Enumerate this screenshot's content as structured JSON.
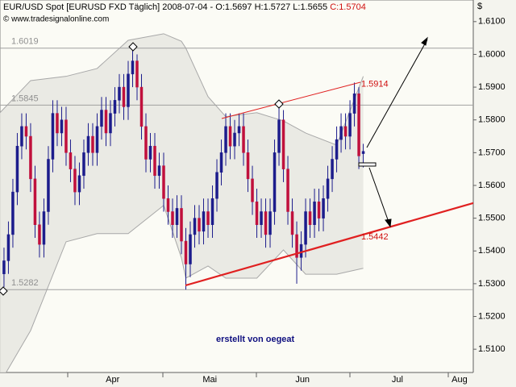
{
  "chart_data": {
    "type": "candlestick",
    "title": "EUR/USD Spot [EURUSD FXD  Täglich] 2008-07-04 - O:1.5697 H:1.5727 L:1.5655",
    "title_close": "C:1.5704",
    "source": "© www.tradesignalonline.com",
    "currency": "$",
    "annotation": "erstellt von oegeat",
    "up_color": "#1c1c8c",
    "down_color": "#c0103c",
    "band_color": "#a8a8a8",
    "open": [
      1.533,
      1.537,
      1.545,
      1.558,
      1.572,
      1.578,
      1.575,
      1.562,
      1.548,
      1.542,
      1.552,
      1.568,
      1.582,
      1.576,
      1.58,
      1.57,
      1.565,
      1.558,
      1.563,
      1.57,
      1.575,
      1.57,
      1.578,
      1.583,
      1.576,
      1.582,
      1.586,
      1.59,
      1.584,
      1.594,
      1.598,
      1.59,
      1.578,
      1.568,
      1.572,
      1.563,
      1.566,
      1.556,
      1.552,
      1.548,
      1.553,
      1.543,
      1.536,
      1.545,
      1.55,
      1.546,
      1.552,
      1.548,
      1.556,
      1.564,
      1.57,
      1.578,
      1.572,
      1.576,
      1.578,
      1.57,
      1.562,
      1.555,
      1.548,
      1.552,
      1.545,
      1.552,
      1.57,
      1.58,
      1.565,
      1.552,
      1.545,
      1.538,
      1.542,
      1.552,
      1.548,
      1.555,
      1.55,
      1.556,
      1.562,
      1.568,
      1.574,
      1.578,
      1.575,
      1.582,
      1.588,
      1.5697
    ],
    "high": [
      1.541,
      1.549,
      1.562,
      1.576,
      1.582,
      1.582,
      1.579,
      1.566,
      1.552,
      1.556,
      1.572,
      1.586,
      1.586,
      1.584,
      1.584,
      1.574,
      1.569,
      1.567,
      1.574,
      1.579,
      1.579,
      1.582,
      1.587,
      1.587,
      1.586,
      1.59,
      1.594,
      1.594,
      1.598,
      1.6019,
      1.6,
      1.594,
      1.582,
      1.576,
      1.576,
      1.57,
      1.57,
      1.56,
      1.556,
      1.557,
      1.557,
      1.547,
      1.549,
      1.554,
      1.554,
      1.556,
      1.556,
      1.56,
      1.568,
      1.574,
      1.582,
      1.582,
      1.58,
      1.582,
      1.582,
      1.574,
      1.566,
      1.559,
      1.556,
      1.556,
      1.556,
      1.574,
      1.5845,
      1.583,
      1.569,
      1.556,
      1.549,
      1.546,
      1.556,
      1.556,
      1.559,
      1.559,
      1.56,
      1.566,
      1.572,
      1.578,
      1.582,
      1.582,
      1.586,
      1.5914,
      1.59,
      1.5727
    ],
    "low": [
      1.529,
      1.533,
      1.541,
      1.554,
      1.568,
      1.571,
      1.558,
      1.544,
      1.538,
      1.538,
      1.548,
      1.564,
      1.572,
      1.572,
      1.566,
      1.561,
      1.554,
      1.554,
      1.559,
      1.566,
      1.566,
      1.566,
      1.574,
      1.572,
      1.572,
      1.578,
      1.582,
      1.58,
      1.58,
      1.59,
      1.586,
      1.574,
      1.564,
      1.564,
      1.559,
      1.559,
      1.552,
      1.548,
      1.544,
      1.544,
      1.539,
      1.5282,
      1.532,
      1.541,
      1.542,
      1.542,
      1.544,
      1.544,
      1.552,
      1.56,
      1.566,
      1.568,
      1.568,
      1.572,
      1.566,
      1.558,
      1.551,
      1.544,
      1.544,
      1.541,
      1.541,
      1.548,
      1.566,
      1.561,
      1.548,
      1.541,
      1.53,
      1.534,
      1.538,
      1.544,
      1.544,
      1.546,
      1.546,
      1.552,
      1.558,
      1.564,
      1.57,
      1.571,
      1.571,
      1.578,
      1.565,
      1.5655
    ],
    "close": [
      1.537,
      1.545,
      1.558,
      1.572,
      1.578,
      1.575,
      1.562,
      1.548,
      1.542,
      1.552,
      1.568,
      1.582,
      1.576,
      1.58,
      1.57,
      1.565,
      1.558,
      1.563,
      1.57,
      1.575,
      1.57,
      1.578,
      1.583,
      1.576,
      1.582,
      1.586,
      1.59,
      1.584,
      1.594,
      1.598,
      1.59,
      1.578,
      1.568,
      1.572,
      1.563,
      1.566,
      1.556,
      1.552,
      1.548,
      1.553,
      1.543,
      1.536,
      1.545,
      1.55,
      1.546,
      1.552,
      1.548,
      1.556,
      1.564,
      1.57,
      1.578,
      1.572,
      1.576,
      1.578,
      1.57,
      1.562,
      1.555,
      1.548,
      1.552,
      1.545,
      1.552,
      1.57,
      1.58,
      1.565,
      1.552,
      1.545,
      1.538,
      1.542,
      1.552,
      1.548,
      1.555,
      1.55,
      1.556,
      1.562,
      1.568,
      1.574,
      1.578,
      1.575,
      1.582,
      1.588,
      1.569,
      1.5704
    ],
    "bands": {
      "x": [
        -0.9,
        6,
        14,
        21,
        28,
        36,
        40,
        41,
        46,
        50,
        57,
        63,
        68,
        75,
        81
      ],
      "upper": [
        1.5822,
        1.592,
        1.5933,
        1.5957,
        1.6043,
        1.6063,
        1.604,
        1.6019,
        1.5871,
        1.581,
        1.5822,
        1.5797,
        1.576,
        1.5723,
        1.5933
      ],
      "lower": [
        1.4997,
        1.5157,
        1.5428,
        1.5453,
        1.5453,
        1.5539,
        1.5379,
        1.5317,
        1.5354,
        1.5317,
        1.5317,
        1.5403,
        1.5329,
        1.5329,
        1.5347
      ]
    },
    "levels": [
      1.6019,
      1.5845,
      1.5282
    ],
    "level_color": "#a0a0a0",
    "price_labels": [
      1.5914,
      1.5442
    ],
    "price_label_color": "#d01010",
    "xlim": [
      -0.9,
      105.8
    ],
    "xticks": [
      {
        "value": 24.5,
        "label": "Apr"
      },
      {
        "value": 46.4,
        "label": "Mai"
      },
      {
        "value": 67.3,
        "label": "Jun"
      },
      {
        "value": 88.7,
        "label": "Jul"
      },
      {
        "value": 102.7,
        "label": "Aug"
      }
    ],
    "ylim": [
      1.5029,
      1.6166
    ],
    "yticks": [
      {
        "value": 1.51,
        "label": "1.5100"
      },
      {
        "value": 1.52,
        "label": "1.5200"
      },
      {
        "value": 1.53,
        "label": "1.5300"
      },
      {
        "value": 1.54,
        "label": "1.5400"
      },
      {
        "value": 1.55,
        "label": "1.5500"
      },
      {
        "value": 1.56,
        "label": "1.5600"
      },
      {
        "value": 1.57,
        "label": "1.5700"
      },
      {
        "value": 1.58,
        "label": "1.5800"
      },
      {
        "value": 1.59,
        "label": "1.5900"
      },
      {
        "value": 1.6,
        "label": "1.6000"
      },
      {
        "value": 1.61,
        "label": "1.6100"
      }
    ]
  }
}
